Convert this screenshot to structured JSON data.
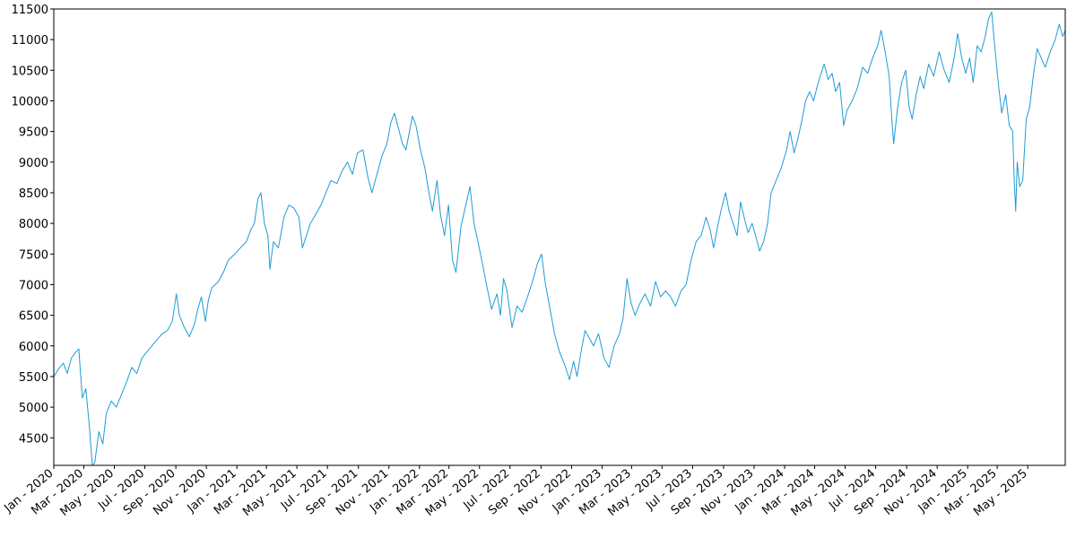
{
  "chart_data": {
    "type": "line",
    "title": "",
    "xlabel": "",
    "ylabel": "",
    "grid": false,
    "legend": "none",
    "line_color": "#1f9bd6",
    "x_range": [
      "2020-01-01",
      "2025-07-15"
    ],
    "ylim": [
      4050,
      11500
    ],
    "y_ticks": [
      4500,
      5000,
      5500,
      6000,
      6500,
      7000,
      7500,
      8000,
      8500,
      9000,
      9500,
      10000,
      10500,
      11000,
      11500
    ],
    "x_ticks": [
      {
        "date": "2020-01-01",
        "label": "Jan - 2020"
      },
      {
        "date": "2020-03-01",
        "label": "Mar - 2020"
      },
      {
        "date": "2020-05-01",
        "label": "May - 2020"
      },
      {
        "date": "2020-07-01",
        "label": "Jul - 2020"
      },
      {
        "date": "2020-09-01",
        "label": "Sep - 2020"
      },
      {
        "date": "2020-11-01",
        "label": "Nov - 2020"
      },
      {
        "date": "2021-01-01",
        "label": "Jan - 2021"
      },
      {
        "date": "2021-03-01",
        "label": "Mar - 2021"
      },
      {
        "date": "2021-05-01",
        "label": "May - 2021"
      },
      {
        "date": "2021-07-01",
        "label": "Jul - 2021"
      },
      {
        "date": "2021-09-01",
        "label": "Sep - 2021"
      },
      {
        "date": "2021-11-01",
        "label": "Nov - 2021"
      },
      {
        "date": "2022-01-01",
        "label": "Jan - 2022"
      },
      {
        "date": "2022-03-01",
        "label": "Mar - 2022"
      },
      {
        "date": "2022-05-01",
        "label": "May - 2022"
      },
      {
        "date": "2022-07-01",
        "label": "Jul - 2022"
      },
      {
        "date": "2022-09-01",
        "label": "Sep - 2022"
      },
      {
        "date": "2022-11-01",
        "label": "Nov - 2022"
      },
      {
        "date": "2023-01-01",
        "label": "Jan - 2023"
      },
      {
        "date": "2023-03-01",
        "label": "Mar - 2023"
      },
      {
        "date": "2023-05-01",
        "label": "May - 2023"
      },
      {
        "date": "2023-07-01",
        "label": "Jul - 2023"
      },
      {
        "date": "2023-09-01",
        "label": "Sep - 2023"
      },
      {
        "date": "2023-11-01",
        "label": "Nov - 2023"
      },
      {
        "date": "2024-01-01",
        "label": "Jan - 2024"
      },
      {
        "date": "2024-03-01",
        "label": "Mar - 2024"
      },
      {
        "date": "2024-05-01",
        "label": "May - 2024"
      },
      {
        "date": "2024-07-01",
        "label": "Jul - 2024"
      },
      {
        "date": "2024-09-01",
        "label": "Sep - 2024"
      },
      {
        "date": "2024-11-01",
        "label": "Nov - 2024"
      },
      {
        "date": "2025-01-01",
        "label": "Jan - 2025"
      },
      {
        "date": "2025-03-01",
        "label": "Mar - 2025"
      },
      {
        "date": "2025-05-01",
        "label": "May - 2025"
      }
    ],
    "series": [
      {
        "points": [
          [
            "2020-01-01",
            5500
          ],
          [
            "2020-01-10",
            5620
          ],
          [
            "2020-01-20",
            5720
          ],
          [
            "2020-01-28",
            5550
          ],
          [
            "2020-02-05",
            5800
          ],
          [
            "2020-02-14",
            5900
          ],
          [
            "2020-02-20",
            5950
          ],
          [
            "2020-02-27",
            5150
          ],
          [
            "2020-03-05",
            5300
          ],
          [
            "2020-03-12",
            4700
          ],
          [
            "2020-03-18",
            4050
          ],
          [
            "2020-03-23",
            4100
          ],
          [
            "2020-03-31",
            4600
          ],
          [
            "2020-04-08",
            4400
          ],
          [
            "2020-04-15",
            4900
          ],
          [
            "2020-04-25",
            5100
          ],
          [
            "2020-05-05",
            5000
          ],
          [
            "2020-05-15",
            5200
          ],
          [
            "2020-05-25",
            5400
          ],
          [
            "2020-06-05",
            5650
          ],
          [
            "2020-06-15",
            5550
          ],
          [
            "2020-06-25",
            5800
          ],
          [
            "2020-07-05",
            5900
          ],
          [
            "2020-07-15",
            6000
          ],
          [
            "2020-07-25",
            6100
          ],
          [
            "2020-08-05",
            6200
          ],
          [
            "2020-08-15",
            6250
          ],
          [
            "2020-08-25",
            6400
          ],
          [
            "2020-09-02",
            6850
          ],
          [
            "2020-09-08",
            6500
          ],
          [
            "2020-09-18",
            6300
          ],
          [
            "2020-09-28",
            6150
          ],
          [
            "2020-10-08",
            6350
          ],
          [
            "2020-10-15",
            6600
          ],
          [
            "2020-10-22",
            6800
          ],
          [
            "2020-10-30",
            6400
          ],
          [
            "2020-11-05",
            6750
          ],
          [
            "2020-11-12",
            6950
          ],
          [
            "2020-11-25",
            7050
          ],
          [
            "2020-12-05",
            7200
          ],
          [
            "2020-12-15",
            7400
          ],
          [
            "2020-12-28",
            7500
          ],
          [
            "2021-01-08",
            7600
          ],
          [
            "2021-01-20",
            7700
          ],
          [
            "2021-01-29",
            7900
          ],
          [
            "2021-02-05",
            8000
          ],
          [
            "2021-02-12",
            8400
          ],
          [
            "2021-02-18",
            8500
          ],
          [
            "2021-02-25",
            8000
          ],
          [
            "2021-03-04",
            7800
          ],
          [
            "2021-03-08",
            7250
          ],
          [
            "2021-03-15",
            7700
          ],
          [
            "2021-03-25",
            7600
          ],
          [
            "2021-04-05",
            8100
          ],
          [
            "2021-04-15",
            8300
          ],
          [
            "2021-04-25",
            8250
          ],
          [
            "2021-05-05",
            8100
          ],
          [
            "2021-05-12",
            7600
          ],
          [
            "2021-05-20",
            7800
          ],
          [
            "2021-05-28",
            8000
          ],
          [
            "2021-06-08",
            8150
          ],
          [
            "2021-06-18",
            8300
          ],
          [
            "2021-06-28",
            8500
          ],
          [
            "2021-07-08",
            8700
          ],
          [
            "2021-07-20",
            8650
          ],
          [
            "2021-07-30",
            8850
          ],
          [
            "2021-08-10",
            9000
          ],
          [
            "2021-08-20",
            8800
          ],
          [
            "2021-08-30",
            9150
          ],
          [
            "2021-09-10",
            9200
          ],
          [
            "2021-09-20",
            8750
          ],
          [
            "2021-09-28",
            8500
          ],
          [
            "2021-10-08",
            8800
          ],
          [
            "2021-10-18",
            9100
          ],
          [
            "2021-10-28",
            9300
          ],
          [
            "2021-11-05",
            9650
          ],
          [
            "2021-11-12",
            9800
          ],
          [
            "2021-11-20",
            9550
          ],
          [
            "2021-11-28",
            9300
          ],
          [
            "2021-12-05",
            9200
          ],
          [
            "2021-12-12",
            9500
          ],
          [
            "2021-12-18",
            9750
          ],
          [
            "2021-12-25",
            9600
          ],
          [
            "2022-01-03",
            9200
          ],
          [
            "2022-01-12",
            8900
          ],
          [
            "2022-01-20",
            8500
          ],
          [
            "2022-01-27",
            8200
          ],
          [
            "2022-02-05",
            8700
          ],
          [
            "2022-02-12",
            8150
          ],
          [
            "2022-02-20",
            7800
          ],
          [
            "2022-02-28",
            8300
          ],
          [
            "2022-03-08",
            7400
          ],
          [
            "2022-03-15",
            7200
          ],
          [
            "2022-03-25",
            7950
          ],
          [
            "2022-04-05",
            8350
          ],
          [
            "2022-04-12",
            8600
          ],
          [
            "2022-04-20",
            8000
          ],
          [
            "2022-04-28",
            7700
          ],
          [
            "2022-05-08",
            7300
          ],
          [
            "2022-05-15",
            7000
          ],
          [
            "2022-05-25",
            6600
          ],
          [
            "2022-06-05",
            6850
          ],
          [
            "2022-06-12",
            6500
          ],
          [
            "2022-06-18",
            7100
          ],
          [
            "2022-06-25",
            6900
          ],
          [
            "2022-07-05",
            6300
          ],
          [
            "2022-07-15",
            6650
          ],
          [
            "2022-07-25",
            6550
          ],
          [
            "2022-08-05",
            6800
          ],
          [
            "2022-08-15",
            7050
          ],
          [
            "2022-08-25",
            7350
          ],
          [
            "2022-09-02",
            7500
          ],
          [
            "2022-09-10",
            7000
          ],
          [
            "2022-09-18",
            6650
          ],
          [
            "2022-09-28",
            6200
          ],
          [
            "2022-10-08",
            5900
          ],
          [
            "2022-10-18",
            5700
          ],
          [
            "2022-10-28",
            5450
          ],
          [
            "2022-11-05",
            5750
          ],
          [
            "2022-11-12",
            5500
          ],
          [
            "2022-11-20",
            5900
          ],
          [
            "2022-11-28",
            6250
          ],
          [
            "2022-12-05",
            6150
          ],
          [
            "2022-12-15",
            6000
          ],
          [
            "2022-12-25",
            6200
          ],
          [
            "2023-01-05",
            5800
          ],
          [
            "2023-01-15",
            5650
          ],
          [
            "2023-01-25",
            6000
          ],
          [
            "2023-02-05",
            6200
          ],
          [
            "2023-02-12",
            6450
          ],
          [
            "2023-02-20",
            7100
          ],
          [
            "2023-02-28",
            6700
          ],
          [
            "2023-03-08",
            6500
          ],
          [
            "2023-03-18",
            6700
          ],
          [
            "2023-03-28",
            6850
          ],
          [
            "2023-04-08",
            6650
          ],
          [
            "2023-04-18",
            7050
          ],
          [
            "2023-04-28",
            6800
          ],
          [
            "2023-05-08",
            6900
          ],
          [
            "2023-05-18",
            6800
          ],
          [
            "2023-05-28",
            6650
          ],
          [
            "2023-06-08",
            6900
          ],
          [
            "2023-06-18",
            7000
          ],
          [
            "2023-06-28",
            7400
          ],
          [
            "2023-07-08",
            7700
          ],
          [
            "2023-07-18",
            7800
          ],
          [
            "2023-07-28",
            8100
          ],
          [
            "2023-08-05",
            7900
          ],
          [
            "2023-08-12",
            7600
          ],
          [
            "2023-08-20",
            7950
          ],
          [
            "2023-08-28",
            8250
          ],
          [
            "2023-09-05",
            8500
          ],
          [
            "2023-09-12",
            8200
          ],
          [
            "2023-09-20",
            8000
          ],
          [
            "2023-09-28",
            7800
          ],
          [
            "2023-10-05",
            8350
          ],
          [
            "2023-10-12",
            8100
          ],
          [
            "2023-10-20",
            7850
          ],
          [
            "2023-10-28",
            8000
          ],
          [
            "2023-11-04",
            7800
          ],
          [
            "2023-11-12",
            7550
          ],
          [
            "2023-11-20",
            7700
          ],
          [
            "2023-11-28",
            8000
          ],
          [
            "2023-12-05",
            8500
          ],
          [
            "2023-12-15",
            8700
          ],
          [
            "2023-12-25",
            8900
          ],
          [
            "2024-01-05",
            9200
          ],
          [
            "2024-01-12",
            9500
          ],
          [
            "2024-01-20",
            9150
          ],
          [
            "2024-01-28",
            9400
          ],
          [
            "2024-02-05",
            9700
          ],
          [
            "2024-02-12",
            10000
          ],
          [
            "2024-02-20",
            10150
          ],
          [
            "2024-02-28",
            10000
          ],
          [
            "2024-03-05",
            10200
          ],
          [
            "2024-03-12",
            10400
          ],
          [
            "2024-03-20",
            10600
          ],
          [
            "2024-03-28",
            10350
          ],
          [
            "2024-04-05",
            10450
          ],
          [
            "2024-04-12",
            10150
          ],
          [
            "2024-04-20",
            10300
          ],
          [
            "2024-04-28",
            9600
          ],
          [
            "2024-05-05",
            9850
          ],
          [
            "2024-05-15",
            10000
          ],
          [
            "2024-05-25",
            10200
          ],
          [
            "2024-06-05",
            10550
          ],
          [
            "2024-06-15",
            10450
          ],
          [
            "2024-06-25",
            10700
          ],
          [
            "2024-07-05",
            10900
          ],
          [
            "2024-07-12",
            11150
          ],
          [
            "2024-07-20",
            10800
          ],
          [
            "2024-07-28",
            10400
          ],
          [
            "2024-08-02",
            9750
          ],
          [
            "2024-08-06",
            9300
          ],
          [
            "2024-08-14",
            9900
          ],
          [
            "2024-08-22",
            10300
          ],
          [
            "2024-08-30",
            10500
          ],
          [
            "2024-09-06",
            9900
          ],
          [
            "2024-09-12",
            9700
          ],
          [
            "2024-09-20",
            10100
          ],
          [
            "2024-09-28",
            10400
          ],
          [
            "2024-10-05",
            10200
          ],
          [
            "2024-10-15",
            10600
          ],
          [
            "2024-10-25",
            10400
          ],
          [
            "2024-11-05",
            10800
          ],
          [
            "2024-11-15",
            10500
          ],
          [
            "2024-11-25",
            10300
          ],
          [
            "2024-12-05",
            10700
          ],
          [
            "2024-12-12",
            11100
          ],
          [
            "2024-12-20",
            10700
          ],
          [
            "2024-12-28",
            10450
          ],
          [
            "2025-01-05",
            10700
          ],
          [
            "2025-01-12",
            10300
          ],
          [
            "2025-01-20",
            10900
          ],
          [
            "2025-01-28",
            10800
          ],
          [
            "2025-02-05",
            11050
          ],
          [
            "2025-02-12",
            11350
          ],
          [
            "2025-02-18",
            11450
          ],
          [
            "2025-02-24",
            10900
          ],
          [
            "2025-03-03",
            10300
          ],
          [
            "2025-03-10",
            9800
          ],
          [
            "2025-03-18",
            10100
          ],
          [
            "2025-03-25",
            9600
          ],
          [
            "2025-04-01",
            9500
          ],
          [
            "2025-04-04",
            8700
          ],
          [
            "2025-04-07",
            8200
          ],
          [
            "2025-04-10",
            9000
          ],
          [
            "2025-04-15",
            8600
          ],
          [
            "2025-04-21",
            8700
          ],
          [
            "2025-04-28",
            9700
          ],
          [
            "2025-05-05",
            9900
          ],
          [
            "2025-05-12",
            10400
          ],
          [
            "2025-05-20",
            10850
          ],
          [
            "2025-05-28",
            10700
          ],
          [
            "2025-06-05",
            10550
          ],
          [
            "2025-06-15",
            10800
          ],
          [
            "2025-06-25",
            11000
          ],
          [
            "2025-07-03",
            11250
          ],
          [
            "2025-07-10",
            11050
          ],
          [
            "2025-07-15",
            11150
          ]
        ]
      }
    ]
  }
}
